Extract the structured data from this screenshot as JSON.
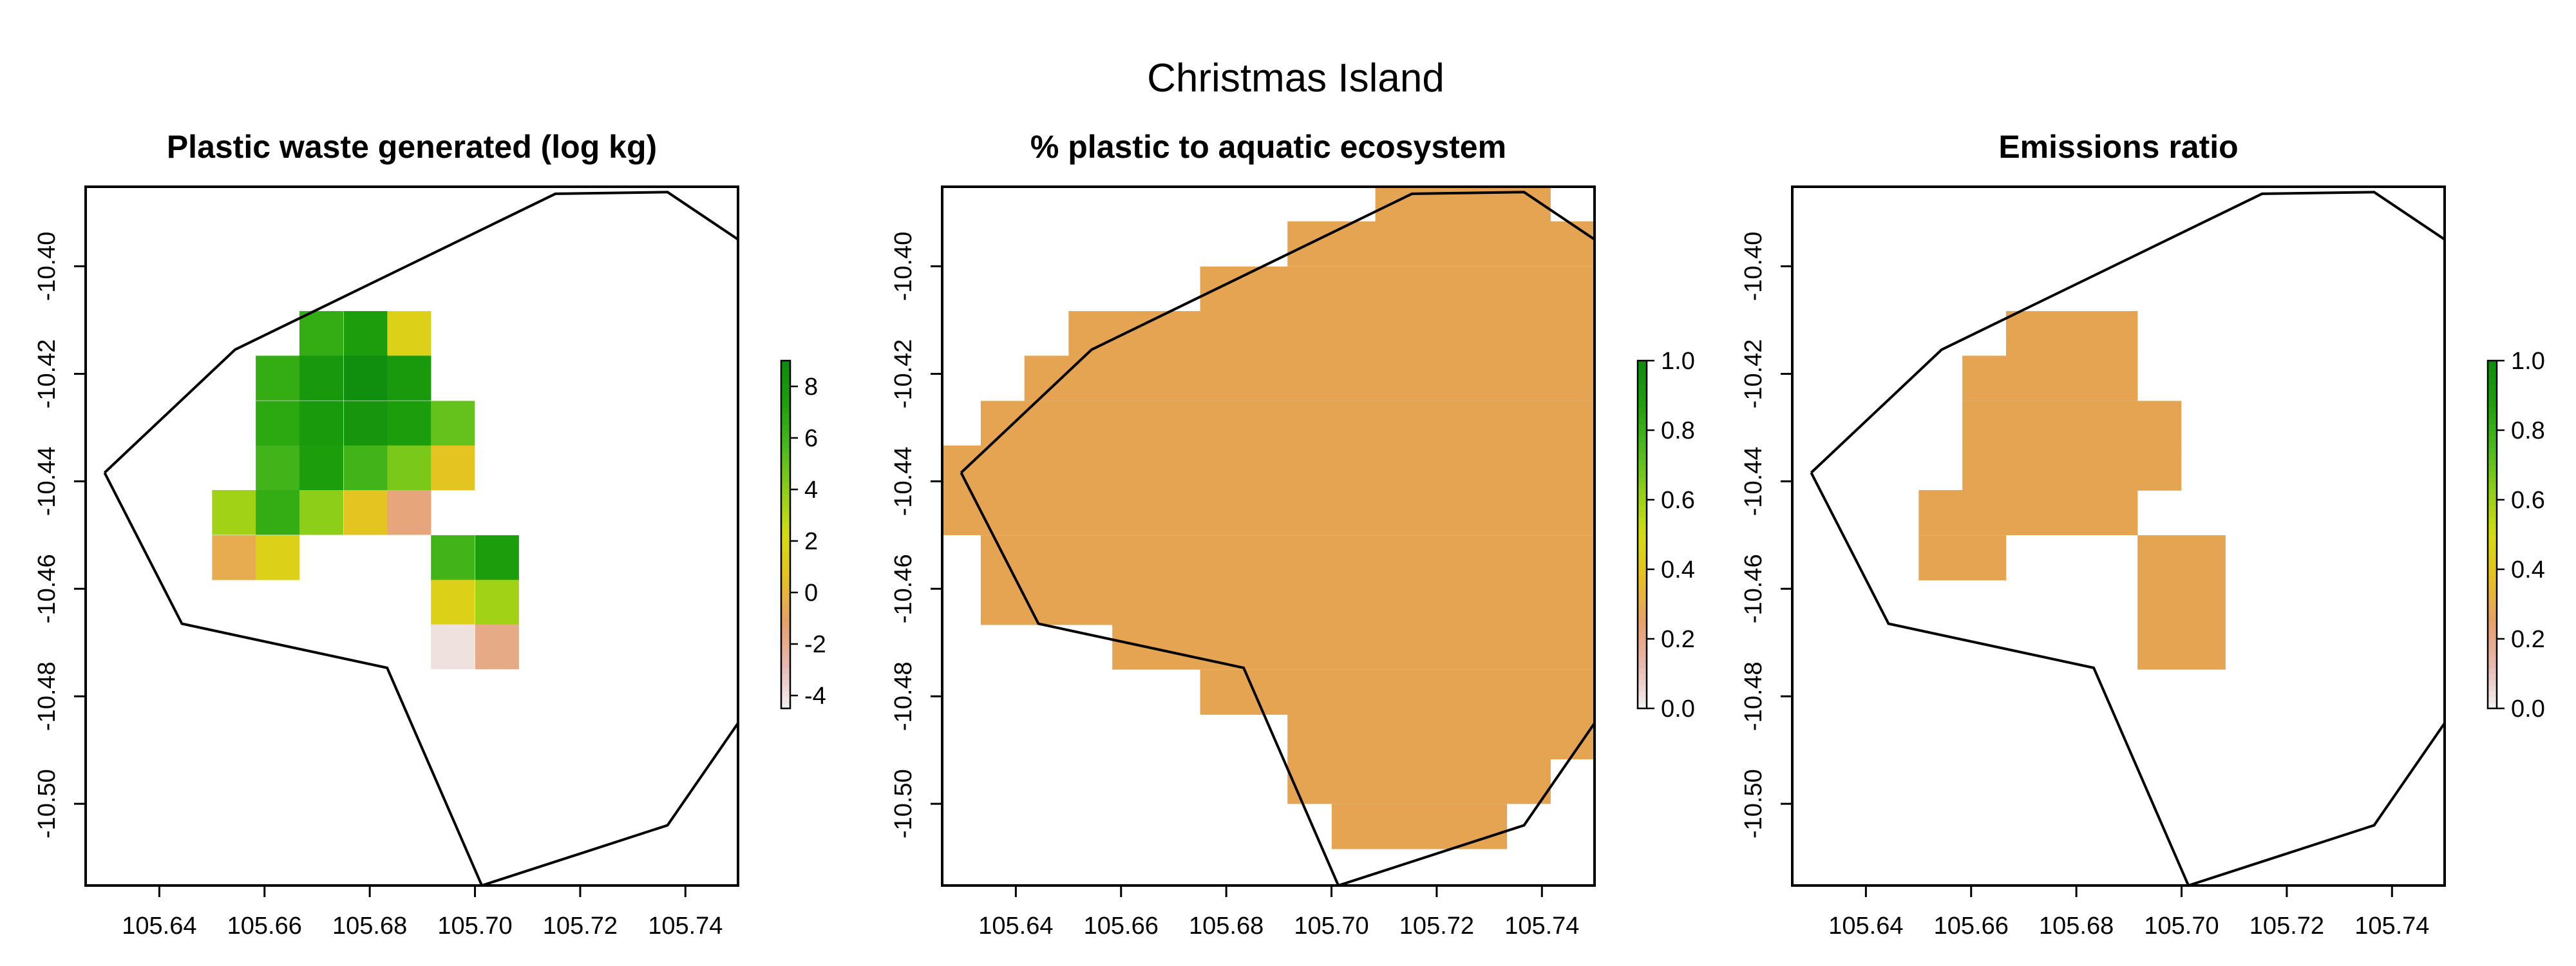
{
  "chart_data": {
    "title": "Christmas Island",
    "panels": [
      {
        "type": "heatmap",
        "title": "Plastic waste generated (log kg)",
        "xlabel": "",
        "ylabel": "",
        "xlim": [
          105.626,
          105.75
        ],
        "ylim": [
          -10.5152,
          -10.3852
        ],
        "x_ticks": [
          "105.64",
          "105.66",
          "105.68",
          "105.70",
          "105.72",
          "105.74"
        ],
        "y_ticks": [
          "-10.40",
          "-10.42",
          "-10.44",
          "-10.46",
          "-10.48",
          "-10.50"
        ],
        "legend": {
          "position": "right",
          "ticks": [
            "-4",
            "-2",
            "0",
            "2",
            "4",
            "6",
            "8"
          ],
          "range": [
            -4.5,
            9
          ]
        },
        "cell_size": 0.008333,
        "cells": [
          {
            "x": 105.6708,
            "y": -10.4125,
            "z": 6.5
          },
          {
            "x": 105.6792,
            "y": -10.4125,
            "z": 7.5
          },
          {
            "x": 105.6875,
            "y": -10.4125,
            "z": 1.5
          },
          {
            "x": 105.6625,
            "y": -10.4208,
            "z": 6.5
          },
          {
            "x": 105.6708,
            "y": -10.4208,
            "z": 8.0
          },
          {
            "x": 105.6792,
            "y": -10.4208,
            "z": 8.8
          },
          {
            "x": 105.6875,
            "y": -10.4208,
            "z": 7.8
          },
          {
            "x": 105.6625,
            "y": -10.4292,
            "z": 6.8
          },
          {
            "x": 105.6708,
            "y": -10.4292,
            "z": 7.8
          },
          {
            "x": 105.6792,
            "y": -10.4292,
            "z": 8.2
          },
          {
            "x": 105.6875,
            "y": -10.4292,
            "z": 7.6
          },
          {
            "x": 105.6958,
            "y": -10.4292,
            "z": 5.0
          },
          {
            "x": 105.6625,
            "y": -10.4375,
            "z": 6.0
          },
          {
            "x": 105.6708,
            "y": -10.4375,
            "z": 7.5
          },
          {
            "x": 105.6792,
            "y": -10.4375,
            "z": 6.0
          },
          {
            "x": 105.6875,
            "y": -10.4375,
            "z": 4.5
          },
          {
            "x": 105.6958,
            "y": -10.4375,
            "z": 0.8
          },
          {
            "x": 105.6542,
            "y": -10.4458,
            "z": 3.5
          },
          {
            "x": 105.6625,
            "y": -10.4458,
            "z": 6.5
          },
          {
            "x": 105.6708,
            "y": -10.4458,
            "z": 4.0
          },
          {
            "x": 105.6792,
            "y": -10.4458,
            "z": 0.8
          },
          {
            "x": 105.6875,
            "y": -10.4458,
            "z": -1.5
          },
          {
            "x": 105.6542,
            "y": -10.4542,
            "z": -0.5
          },
          {
            "x": 105.6625,
            "y": -10.4542,
            "z": 1.5
          },
          {
            "x": 105.6958,
            "y": -10.4542,
            "z": 6.0
          },
          {
            "x": 105.7042,
            "y": -10.4542,
            "z": 7.5
          },
          {
            "x": 105.6958,
            "y": -10.4625,
            "z": 1.5
          },
          {
            "x": 105.7042,
            "y": -10.4625,
            "z": 3.5
          },
          {
            "x": 105.6958,
            "y": -10.4708,
            "z": -4.0
          },
          {
            "x": 105.7042,
            "y": -10.4708,
            "z": -1.8
          }
        ]
      },
      {
        "type": "heatmap",
        "title": "% plastic to aquatic ecosystem",
        "xlabel": "",
        "ylabel": "",
        "xlim": [
          105.626,
          105.75
        ],
        "ylim": [
          -10.5152,
          -10.3852
        ],
        "x_ticks": [
          "105.64",
          "105.66",
          "105.68",
          "105.70",
          "105.72",
          "105.74"
        ],
        "y_ticks": [
          "-10.40",
          "-10.42",
          "-10.44",
          "-10.46",
          "-10.48",
          "-10.50"
        ],
        "legend": {
          "position": "right",
          "ticks": [
            "0.0",
            "0.2",
            "0.4",
            "0.6",
            "0.8",
            "1.0"
          ],
          "range": [
            0,
            1
          ]
        },
        "cell_size": 0.008333,
        "all_cells_value": 0.22,
        "rows": [
          {
            "y": -10.3875,
            "x_from": 105.7125,
            "x_to": 105.7375
          },
          {
            "y": -10.3958,
            "x_from": 105.6958,
            "x_to": 105.75
          },
          {
            "y": -10.4042,
            "x_from": 105.6792,
            "x_to": 105.75
          },
          {
            "y": -10.4125,
            "x_from": 105.6542,
            "x_to": 105.75
          },
          {
            "y": -10.4208,
            "x_from": 105.6458,
            "x_to": 105.75
          },
          {
            "y": -10.4292,
            "x_from": 105.6375,
            "x_to": 105.75
          },
          {
            "y": -10.4375,
            "x_from": 105.6292,
            "x_to": 105.75
          },
          {
            "y": -10.4458,
            "x_from": 105.6292,
            "x_to": 105.75
          },
          {
            "y": -10.4542,
            "x_from": 105.6375,
            "x_to": 105.75
          },
          {
            "y": -10.4625,
            "x_from": 105.6375,
            "x_to": 105.75
          },
          {
            "y": -10.4708,
            "x_from": 105.6625,
            "x_to": 105.75
          },
          {
            "y": -10.4792,
            "x_from": 105.6792,
            "x_to": 105.75
          },
          {
            "y": -10.4875,
            "x_from": 105.6958,
            "x_to": 105.75
          },
          {
            "y": -10.4958,
            "x_from": 105.6958,
            "x_to": 105.7375
          },
          {
            "y": -10.5042,
            "x_from": 105.7042,
            "x_to": 105.7292
          }
        ]
      },
      {
        "type": "heatmap",
        "title": "Emissions ratio",
        "xlabel": "",
        "ylabel": "",
        "xlim": [
          105.626,
          105.75
        ],
        "ylim": [
          -10.5152,
          -10.3852
        ],
        "x_ticks": [
          "105.64",
          "105.66",
          "105.68",
          "105.70",
          "105.72",
          "105.74"
        ],
        "y_ticks": [
          "-10.40",
          "-10.42",
          "-10.44",
          "-10.46",
          "-10.48",
          "-10.50"
        ],
        "legend": {
          "position": "right",
          "ticks": [
            "0.0",
            "0.2",
            "0.4",
            "0.6",
            "0.8",
            "1.0"
          ],
          "range": [
            0,
            1
          ]
        },
        "cell_size": 0.008333,
        "all_cells_value": 0.22,
        "rows": [
          {
            "y": -10.4125,
            "x_from": 105.6708,
            "x_to": 105.6875
          },
          {
            "y": -10.4208,
            "x_from": 105.6625,
            "x_to": 105.6875
          },
          {
            "y": -10.4292,
            "x_from": 105.6625,
            "x_to": 105.6958
          },
          {
            "y": -10.4375,
            "x_from": 105.6625,
            "x_to": 105.6958
          },
          {
            "y": -10.4458,
            "x_from": 105.6542,
            "x_to": 105.6875
          },
          {
            "y": -10.4542,
            "x_from": 105.6542,
            "x_to": 105.6625
          },
          {
            "y": -10.4542,
            "x_from": 105.6958,
            "x_to": 105.7042
          },
          {
            "y": -10.4625,
            "x_from": 105.6958,
            "x_to": 105.7042
          },
          {
            "y": -10.4708,
            "x_from": 105.6958,
            "x_to": 105.7042
          }
        ]
      }
    ],
    "island_outline": [
      [
        105.6296,
        -10.4384
      ],
      [
        105.6544,
        -10.4155
      ],
      [
        105.7153,
        -10.3865
      ],
      [
        105.7366,
        -10.3862
      ],
      [
        105.75,
        -10.395
      ],
      [
        105.75,
        -10.485
      ],
      [
        105.7366,
        -10.504
      ],
      [
        105.7013,
        -10.5152
      ],
      [
        105.6833,
        -10.4747
      ],
      [
        105.6443,
        -10.4665
      ],
      [
        105.6296,
        -10.4384
      ]
    ],
    "colors": {
      "scale": [
        "#f2f2f2",
        "#e8b8b0",
        "#e6a06a",
        "#e6c022",
        "#d4dc12",
        "#8fcf18",
        "#4cba1e",
        "#1ea00c",
        "#0e8c0e"
      ],
      "ratio_fill": "#e5a451",
      "outline": "#000000"
    }
  }
}
